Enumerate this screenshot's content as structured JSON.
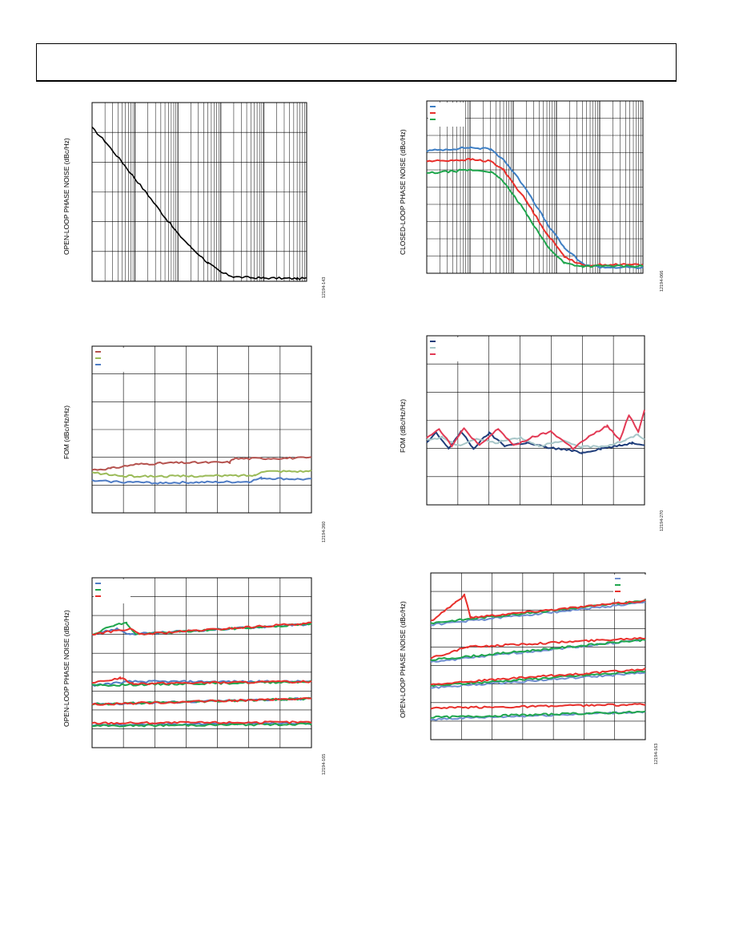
{
  "page": {
    "header": ""
  },
  "figures": [
    {
      "id": "fig-ol-phase-noise",
      "ylabel": "OPEN-LOOP PHASE NOISE (dBc/Hz)",
      "figure_id": "12194-143"
    },
    {
      "id": "fig-cl-phase-noise",
      "ylabel": "CLOSED-LOOP PHASE NOISE (dBc/Hz)",
      "figure_id": "12194-066"
    },
    {
      "id": "fig-fom-left",
      "ylabel": "FOM (dBc/Hz/Hz)",
      "figure_id": "12194-260"
    },
    {
      "id": "fig-fom-right",
      "ylabel": "FOM (dBc/Hz/Hz)",
      "figure_id": "12194-270"
    },
    {
      "id": "fig-ol-bands-left",
      "ylabel": "OPEN-LOOP PHASE NOISE (dBc/Hz)",
      "figure_id": "12194-165"
    },
    {
      "id": "fig-ol-bands-right",
      "ylabel": "OPEN-LOOP PHASE NOISE (dBc/Hz)",
      "figure_id": "12194-163"
    }
  ],
  "chart_data": [
    {
      "type": "line",
      "title": "",
      "xlabel": "",
      "ylabel": "OPEN-LOOP PHASE NOISE (dBc/Hz)",
      "xscale": "log",
      "xlim": [
        1000,
        100000000
      ],
      "ylim": [
        0,
        6
      ],
      "grid": true,
      "legend": "none",
      "series": [
        {
          "name": "",
          "color": "#000000",
          "points": [
            [
              1000,
              5.15
            ],
            [
              2000,
              4.7
            ],
            [
              5000,
              4.0
            ],
            [
              10000,
              3.45
            ],
            [
              20000,
              2.9
            ],
            [
              50000,
              2.15
            ],
            [
              100000,
              1.6
            ],
            [
              200000,
              1.15
            ],
            [
              500000,
              0.62
            ],
            [
              1000000,
              0.3
            ],
            [
              2000000,
              0.15
            ],
            [
              5000000,
              0.12
            ],
            [
              10000000,
              0.11
            ],
            [
              30000000,
              0.1
            ],
            [
              60000000,
              0.09
            ],
            [
              100000000,
              0.1
            ]
          ]
        }
      ]
    },
    {
      "type": "line",
      "title": "",
      "xlabel": "",
      "ylabel": "CLOSED-LOOP PHASE NOISE (dBc/Hz)",
      "xscale": "log",
      "xlim": [
        1000,
        100000000
      ],
      "ylim": [
        0,
        10
      ],
      "grid": true,
      "legend": "top-left",
      "series": [
        {
          "name": "",
          "color": "#3f7fc4",
          "points": [
            [
              1000,
              7.1
            ],
            [
              10000,
              7.3
            ],
            [
              30000,
              7.2
            ],
            [
              60000,
              6.6
            ],
            [
              200000,
              4.9
            ],
            [
              600000,
              2.9
            ],
            [
              1500000,
              1.5
            ],
            [
              4000000,
              0.55
            ],
            [
              10000000,
              0.35
            ],
            [
              100000000,
              0.32
            ]
          ]
        },
        {
          "name": "",
          "color": "#e8302c",
          "points": [
            [
              1000,
              6.5
            ],
            [
              10000,
              6.6
            ],
            [
              30000,
              6.5
            ],
            [
              60000,
              6.0
            ],
            [
              200000,
              4.2
            ],
            [
              600000,
              2.3
            ],
            [
              1500000,
              1.0
            ],
            [
              4000000,
              0.45
            ],
            [
              10000000,
              0.5
            ],
            [
              100000000,
              0.5
            ]
          ]
        },
        {
          "name": "",
          "color": "#1fa64d",
          "points": [
            [
              1000,
              5.8
            ],
            [
              10000,
              6.0
            ],
            [
              30000,
              5.9
            ],
            [
              60000,
              5.3
            ],
            [
              200000,
              3.5
            ],
            [
              600000,
              1.6
            ],
            [
              1500000,
              0.6
            ],
            [
              4000000,
              0.4
            ],
            [
              10000000,
              0.42
            ],
            [
              100000000,
              0.42
            ]
          ]
        }
      ]
    },
    {
      "type": "line",
      "title": "",
      "xlabel": "",
      "ylabel": "FOM (dBc/Hz/Hz)",
      "xlim": [
        0,
        7
      ],
      "ylim": [
        0,
        6
      ],
      "grid": true,
      "legend": "top-left",
      "series": [
        {
          "name": "",
          "color": "#b5534f",
          "points": [
            [
              0,
              1.55
            ],
            [
              0.6,
              1.6
            ],
            [
              1.4,
              1.75
            ],
            [
              2.6,
              1.8
            ],
            [
              4.4,
              1.82
            ],
            [
              4.5,
              1.95
            ],
            [
              7,
              1.98
            ]
          ]
        },
        {
          "name": "",
          "color": "#9bbb59",
          "points": [
            [
              0,
              1.45
            ],
            [
              1,
              1.32
            ],
            [
              3,
              1.32
            ],
            [
              5.2,
              1.35
            ],
            [
              5.4,
              1.5
            ],
            [
              7,
              1.5
            ]
          ]
        },
        {
          "name": "",
          "color": "#4f7cc4",
          "points": [
            [
              0,
              1.15
            ],
            [
              2,
              1.08
            ],
            [
              5,
              1.12
            ],
            [
              5.4,
              1.25
            ],
            [
              7,
              1.2
            ]
          ]
        }
      ]
    },
    {
      "type": "line",
      "title": "",
      "xlabel": "",
      "ylabel": "FOM (dBc/Hz/Hz)",
      "xlim": [
        0,
        7
      ],
      "ylim": [
        0,
        6
      ],
      "grid": true,
      "legend": "top-left",
      "series": [
        {
          "name": "",
          "color": "#1f3d7a",
          "points": [
            [
              0,
              2.2
            ],
            [
              0.3,
              2.55
            ],
            [
              0.7,
              2.0
            ],
            [
              1.1,
              2.6
            ],
            [
              1.5,
              2.0
            ],
            [
              2,
              2.55
            ],
            [
              2.5,
              2.1
            ],
            [
              3.2,
              2.2
            ],
            [
              3.8,
              2.05
            ],
            [
              4.5,
              1.95
            ],
            [
              5,
              1.85
            ],
            [
              5.6,
              2.0
            ],
            [
              6.2,
              2.1
            ],
            [
              6.6,
              2.2
            ],
            [
              7,
              2.15
            ]
          ]
        },
        {
          "name": "",
          "color": "#a7c6c8",
          "points": [
            [
              0,
              2.3
            ],
            [
              0.5,
              2.4
            ],
            [
              1,
              2.1
            ],
            [
              1.6,
              2.35
            ],
            [
              2.2,
              2.2
            ],
            [
              3,
              2.4
            ],
            [
              3.6,
              2.1
            ],
            [
              4.4,
              2.25
            ],
            [
              5,
              2.05
            ],
            [
              5.8,
              2.1
            ],
            [
              6.4,
              2.3
            ],
            [
              6.8,
              2.5
            ],
            [
              7,
              2.3
            ]
          ]
        },
        {
          "name": "",
          "color": "#e23a55",
          "points": [
            [
              0,
              2.4
            ],
            [
              0.4,
              2.7
            ],
            [
              0.8,
              2.1
            ],
            [
              1.2,
              2.7
            ],
            [
              1.7,
              2.1
            ],
            [
              2.3,
              2.7
            ],
            [
              2.8,
              2.1
            ],
            [
              3.4,
              2.4
            ],
            [
              4,
              2.6
            ],
            [
              4.7,
              2.0
            ],
            [
              5.2,
              2.4
            ],
            [
              5.8,
              2.8
            ],
            [
              6.2,
              2.3
            ],
            [
              6.5,
              3.2
            ],
            [
              6.8,
              2.6
            ],
            [
              7,
              3.4
            ]
          ]
        }
      ]
    },
    {
      "type": "line",
      "title": "",
      "xlabel": "",
      "ylabel": "OPEN-LOOP PHASE NOISE (dBc/Hz)",
      "xlim": [
        0,
        7
      ],
      "ylim": [
        0,
        9
      ],
      "grid": true,
      "legend": "top-left",
      "series": [
        {
          "name": "",
          "color": "#4f7cc4",
          "points": [
            [
              0,
              6.0
            ],
            [
              0.8,
              6.3
            ],
            [
              1.2,
              6.0
            ],
            [
              7,
              6.55
            ],
            [
              0,
              3.3
            ],
            [
              1.2,
              3.5
            ],
            [
              7,
              3.5
            ],
            [
              0,
              2.3
            ],
            [
              7,
              2.6
            ],
            [
              0,
              1.2
            ],
            [
              7,
              1.3
            ]
          ]
        },
        {
          "name": "",
          "color": "#1fa64d",
          "points": [
            [
              0,
              6.0
            ],
            [
              0.7,
              6.5
            ],
            [
              1.1,
              6.6
            ],
            [
              1.4,
              6.0
            ],
            [
              7,
              6.55
            ],
            [
              0,
              3.3
            ],
            [
              7,
              3.5
            ],
            [
              0,
              2.3
            ],
            [
              7,
              2.6
            ],
            [
              0,
              1.15
            ],
            [
              7,
              1.25
            ]
          ]
        },
        {
          "name": "",
          "color": "#e8302c",
          "points": [
            [
              0,
              6.0
            ],
            [
              1.2,
              6.3
            ],
            [
              1.5,
              6.0
            ],
            [
              7,
              6.6
            ],
            [
              0,
              3.4
            ],
            [
              0.9,
              3.7
            ],
            [
              1.3,
              3.4
            ],
            [
              7,
              3.5
            ],
            [
              0,
              2.3
            ],
            [
              7,
              2.6
            ],
            [
              0,
              1.3
            ],
            [
              7,
              1.35
            ]
          ]
        }
      ]
    },
    {
      "type": "line",
      "title": "",
      "xlabel": "",
      "ylabel": "OPEN-LOOP PHASE NOISE (dBc/Hz)",
      "xlim": [
        0,
        7
      ],
      "ylim": [
        0,
        9
      ],
      "grid": true,
      "legend": "top-right",
      "series": [
        {
          "name": "",
          "color": "#6f8fd0",
          "points": [
            [
              0,
              6.2
            ],
            [
              7,
              7.4
            ],
            [
              0,
              4.2
            ],
            [
              7,
              5.4
            ],
            [
              0,
              2.8
            ],
            [
              7,
              3.6
            ],
            [
              0,
              1.1
            ],
            [
              7,
              1.5
            ]
          ]
        },
        {
          "name": "",
          "color": "#1fa64d",
          "points": [
            [
              0,
              6.3
            ],
            [
              7,
              7.5
            ],
            [
              0,
              4.3
            ],
            [
              7,
              5.4
            ],
            [
              0,
              2.9
            ],
            [
              7,
              3.7
            ],
            [
              0,
              1.2
            ],
            [
              7,
              1.5
            ]
          ]
        },
        {
          "name": "",
          "color": "#e8302c",
          "points": [
            [
              0,
              6.4
            ],
            [
              0.8,
              7.4
            ],
            [
              1.1,
              7.8
            ],
            [
              1.3,
              6.6
            ],
            [
              7,
              7.5
            ],
            [
              0,
              4.4
            ],
            [
              1.2,
              5.0
            ],
            [
              7,
              5.5
            ],
            [
              0,
              3.0
            ],
            [
              7,
              3.8
            ],
            [
              0,
              1.7
            ],
            [
              7,
              1.9
            ]
          ]
        }
      ]
    }
  ]
}
